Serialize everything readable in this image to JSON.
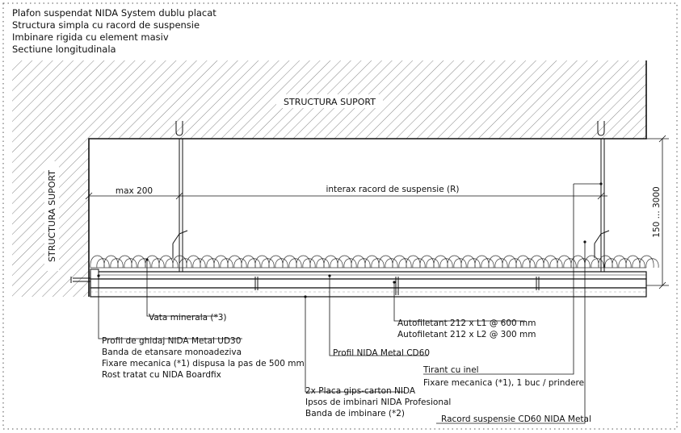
{
  "title_block": {
    "line1": "Plafon suspendat NIDA System dublu placat",
    "line2": "Structura simpla cu racord de suspensie",
    "line3": "Imbinare rigida cu element masiv",
    "line4": "Sectiune longitudinala"
  },
  "zones": {
    "top": "STRUCTURA SUPORT",
    "left": "STRUCTURA SUPORT"
  },
  "dimensions": {
    "max_edge": "max 200",
    "interax": "interax racord de suspensie (R)",
    "height": "150 ... 3000"
  },
  "labels": {
    "vata": "Vata minerala (*3)",
    "ud30_1": "Profil de ghidaj NIDA Metal UD30",
    "ud30_2": "Banda de etansare monoadeziva",
    "ud30_3": "Fixare mecanica (*1) dispusa la pas de 500 mm",
    "ud30_4": "Rost tratat cu NIDA Boardfix",
    "cd60": "Profil NIDA Metal CD60",
    "screw1": "Autofiletant 212 x L1 @ 600 mm",
    "screw2": "Autofiletant 212 x L2 @ 300 mm",
    "tirant1": "Tirant cu inel",
    "tirant2": "Fixare mecanica (*1), 1 buc / prindere",
    "placa1": "2x Placa gips-carton NIDA",
    "placa2": "Ipsos de imbinari NIDA Profesional",
    "placa3": "Banda de imbinare (*2)",
    "racord": "Racord suspensie CD60 NIDA Metal"
  }
}
